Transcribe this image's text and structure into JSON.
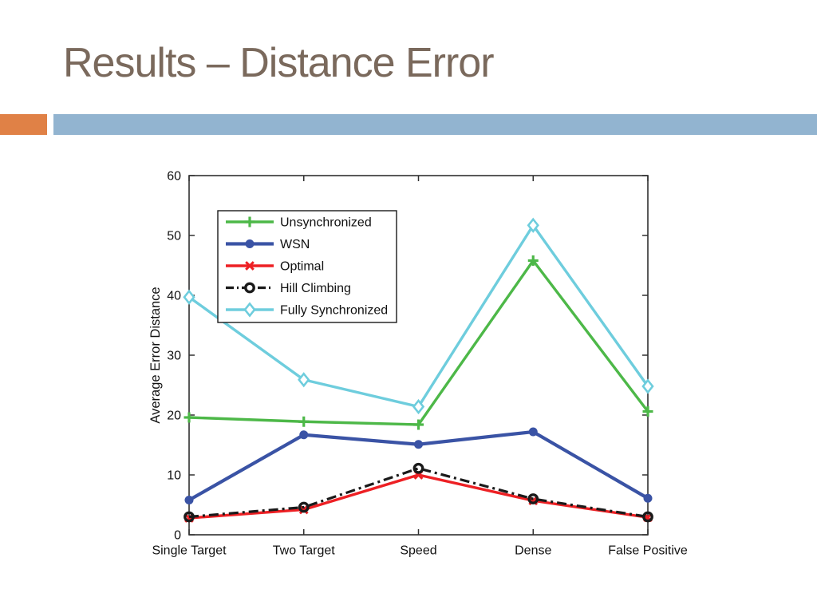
{
  "slide": {
    "title": "Results – Distance Error",
    "title_color": "#7a695c",
    "accent_bar": {
      "orange": "#e08146",
      "blue": "#92b4d0"
    }
  },
  "chart_data": {
    "type": "line",
    "title": "",
    "xlabel": "",
    "ylabel": "Average Error Distance",
    "categories": [
      "Single Target",
      "Two Target",
      "Speed",
      "Dense",
      "False Positive"
    ],
    "ylim": [
      0,
      60
    ],
    "yticks": [
      0,
      10,
      20,
      30,
      40,
      50,
      60
    ],
    "grid": false,
    "legend_position": "upper left inside",
    "axis_color": "#303030",
    "text_color": "#111111",
    "series": [
      {
        "name": "Unsynchronized",
        "color": "#4db848",
        "marker": "plus",
        "line": "solid",
        "values": [
          19.6,
          18.9,
          18.4,
          45.8,
          20.6
        ]
      },
      {
        "name": "WSN",
        "color": "#3a53a5",
        "marker": "circle-filled",
        "line": "solid",
        "values": [
          5.8,
          16.7,
          15.1,
          17.2,
          6.1
        ]
      },
      {
        "name": "Optimal",
        "color": "#ed2024",
        "marker": "x",
        "line": "solid",
        "values": [
          2.8,
          4.2,
          10.0,
          5.7,
          2.9
        ]
      },
      {
        "name": "Hill Climbing",
        "color": "#1a1a1a",
        "marker": "circle-open",
        "line": "dashdot",
        "values": [
          3.0,
          4.6,
          11.1,
          6.0,
          3.0
        ]
      },
      {
        "name": "Fully Synchronized",
        "color": "#6ecddd",
        "marker": "diamond-open",
        "line": "solid",
        "values": [
          39.7,
          25.9,
          21.4,
          51.7,
          24.8
        ]
      }
    ]
  }
}
